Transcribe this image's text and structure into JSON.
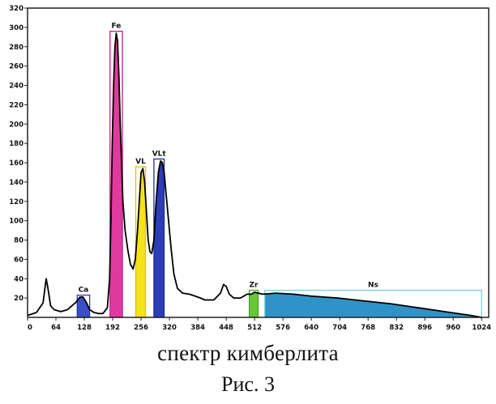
{
  "chart_data": {
    "type": "area",
    "xlim": [
      0,
      1040
    ],
    "ylim": [
      0,
      320
    ],
    "x_ticks": [
      0,
      64,
      128,
      192,
      256,
      320,
      384,
      448,
      512,
      576,
      640,
      704,
      768,
      832,
      896,
      960,
      1024
    ],
    "y_ticks": [
      20,
      40,
      60,
      80,
      100,
      120,
      140,
      160,
      180,
      200,
      220,
      240,
      260,
      280,
      300,
      320
    ],
    "grid": false,
    "series": [
      {
        "values": [
          [
            0,
            2
          ],
          [
            20,
            5
          ],
          [
            35,
            15
          ],
          [
            42,
            40
          ],
          [
            46,
            30
          ],
          [
            52,
            12
          ],
          [
            60,
            8
          ],
          [
            75,
            6
          ],
          [
            90,
            8
          ],
          [
            100,
            12
          ],
          [
            110,
            16
          ],
          [
            118,
            21
          ],
          [
            125,
            21
          ],
          [
            132,
            16
          ],
          [
            140,
            8
          ],
          [
            150,
            5
          ],
          [
            160,
            4
          ],
          [
            170,
            4
          ],
          [
            180,
            10
          ],
          [
            185,
            40
          ],
          [
            188,
            100
          ],
          [
            191,
            180
          ],
          [
            194,
            240
          ],
          [
            197,
            280
          ],
          [
            200,
            294
          ],
          [
            203,
            286
          ],
          [
            206,
            250
          ],
          [
            209,
            200
          ],
          [
            212,
            160
          ],
          [
            215,
            120
          ],
          [
            220,
            90
          ],
          [
            226,
            70
          ],
          [
            232,
            55
          ],
          [
            238,
            50
          ],
          [
            243,
            60
          ],
          [
            248,
            90
          ],
          [
            252,
            120
          ],
          [
            256,
            150
          ],
          [
            260,
            154
          ],
          [
            264,
            140
          ],
          [
            268,
            110
          ],
          [
            272,
            80
          ],
          [
            276,
            68
          ],
          [
            280,
            66
          ],
          [
            285,
            80
          ],
          [
            290,
            120
          ],
          [
            295,
            150
          ],
          [
            300,
            162
          ],
          [
            304,
            160
          ],
          [
            308,
            150
          ],
          [
            312,
            130
          ],
          [
            318,
            100
          ],
          [
            324,
            70
          ],
          [
            330,
            45
          ],
          [
            338,
            30
          ],
          [
            350,
            25
          ],
          [
            365,
            24
          ],
          [
            378,
            22
          ],
          [
            390,
            20
          ],
          [
            400,
            18
          ],
          [
            420,
            18
          ],
          [
            435,
            25
          ],
          [
            442,
            34
          ],
          [
            448,
            32
          ],
          [
            455,
            24
          ],
          [
            465,
            20
          ],
          [
            480,
            20
          ],
          [
            495,
            24
          ],
          [
            505,
            24
          ],
          [
            512,
            26
          ],
          [
            530,
            24
          ],
          [
            560,
            25
          ],
          [
            600,
            24
          ],
          [
            640,
            22
          ],
          [
            700,
            20
          ],
          [
            760,
            17
          ],
          [
            820,
            14
          ],
          [
            880,
            10
          ],
          [
            940,
            6
          ],
          [
            1000,
            2
          ],
          [
            1024,
            0
          ]
        ],
        "color": "#000000"
      }
    ],
    "bands": [
      {
        "label": "Ca",
        "x0": 112,
        "x1": 140,
        "fill": "#3a4fc4",
        "outline": "#2a3aa8"
      },
      {
        "label": "Fe",
        "x0": 186,
        "x1": 214,
        "fill": "#e13a9e",
        "outline": "#c0208a"
      },
      {
        "label": "VL",
        "x0": 244,
        "x1": 266,
        "fill": "#f4e21a",
        "outline": "#d8c800"
      },
      {
        "label": "VLt",
        "x0": 285,
        "x1": 308,
        "fill": "#2c3db8",
        "outline": "#1a2a99"
      },
      {
        "label": "Zr",
        "x0": 500,
        "x1": 520,
        "fill": "#6ac43a",
        "outline": "#4aa820"
      },
      {
        "label": "Ns",
        "x0": 535,
        "x1": 1024,
        "fill": "#2f93c7",
        "outline": "#7ccfdc",
        "box_top": 28
      }
    ]
  },
  "caption": {
    "line1": "спектр кимберлита",
    "line2": "Рис. 3"
  }
}
